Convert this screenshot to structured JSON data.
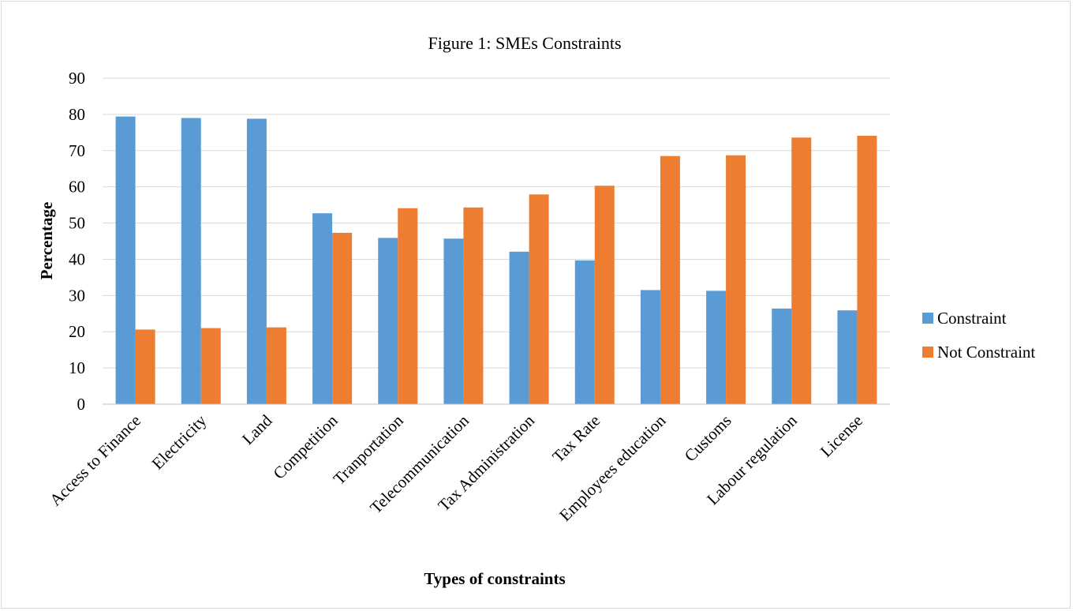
{
  "chart_data": {
    "type": "bar",
    "title": "Figure 1: SMEs Constraints",
    "xlabel": "Types of constraints",
    "ylabel": "Percentage",
    "ylim": [
      0,
      90
    ],
    "yticks": [
      0,
      10,
      20,
      30,
      40,
      50,
      60,
      70,
      80,
      90
    ],
    "grid": true,
    "legend_position": "right",
    "categories": [
      "Access to Finance",
      "Electricity",
      "Land",
      "Competition",
      "Tranportation",
      "Telecommunication",
      "Tax Administration",
      "Tax Rate",
      "Employees education",
      "Customs",
      "Labour regulation",
      "License"
    ],
    "series": [
      {
        "name": "Constraint",
        "color": "#5b9bd5",
        "values": [
          79.4,
          79.0,
          78.8,
          52.7,
          45.9,
          45.7,
          42.1,
          39.7,
          31.5,
          31.3,
          26.4,
          25.9
        ]
      },
      {
        "name": "Not Constraint",
        "color": "#ed7d31",
        "values": [
          20.6,
          21.0,
          21.2,
          47.3,
          54.1,
          54.3,
          57.9,
          60.3,
          68.5,
          68.7,
          73.6,
          74.1
        ]
      }
    ]
  }
}
